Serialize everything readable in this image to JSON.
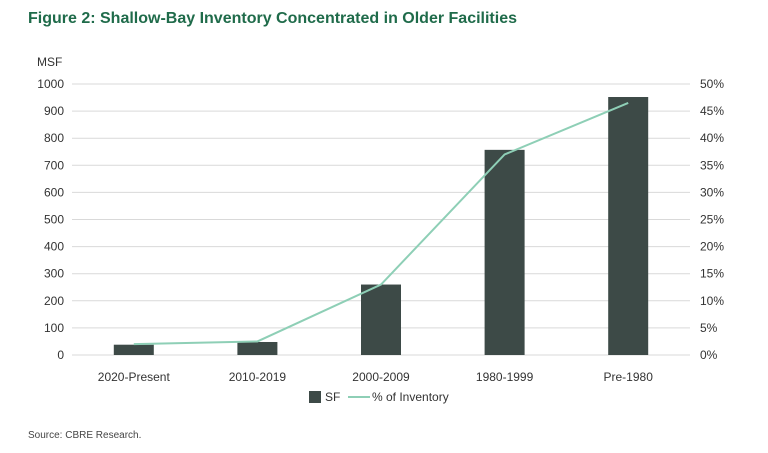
{
  "title": "Figure 2: Shallow-Bay Inventory Concentrated in Older Facilities",
  "source": "Source: CBRE Research.",
  "colors": {
    "title": "#1f6b4a",
    "bar": "#3d4a47",
    "line": "#8ecfb6",
    "grid": "#d9d9d9"
  },
  "chart_data": {
    "type": "bar",
    "categories": [
      "2020-Present",
      "2010-2019",
      "2000-2009",
      "1980-1999",
      "Pre-1980"
    ],
    "series": [
      {
        "name": "SF",
        "type": "bar",
        "axis": "left",
        "values": [
          38,
          48,
          260,
          757,
          952
        ]
      },
      {
        "name": "% of Inventory",
        "type": "line",
        "axis": "right",
        "values": [
          2,
          2.5,
          13,
          37,
          46.5
        ]
      }
    ],
    "ylabel": "MSF",
    "ylim": [
      0,
      1000
    ],
    "y_ticks": [
      "0",
      "100",
      "200",
      "300",
      "400",
      "500",
      "600",
      "700",
      "800",
      "900",
      "1000"
    ],
    "y2lim": [
      0,
      50
    ],
    "y2_ticks": [
      "0%",
      "5%",
      "10%",
      "15%",
      "20%",
      "25%",
      "30%",
      "35%",
      "40%",
      "45%",
      "50%"
    ],
    "grid": true,
    "legend_position": "bottom-center"
  }
}
